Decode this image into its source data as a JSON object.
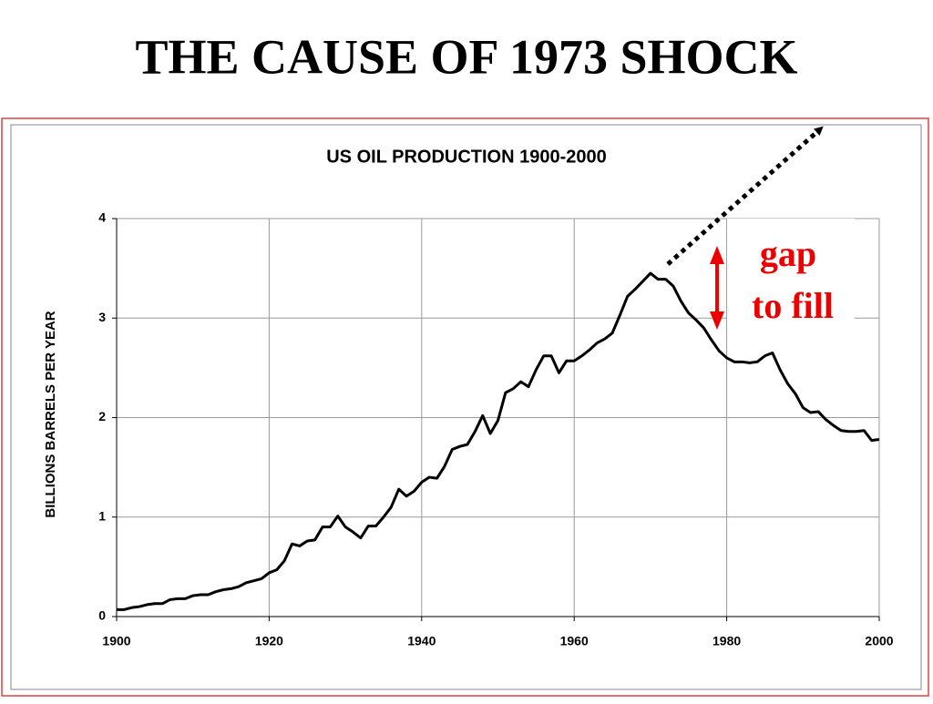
{
  "slide_title": "THE CAUSE OF 1973 SHOCK",
  "chart_data": {
    "type": "line",
    "title": "US OIL PRODUCTION 1900-2000",
    "y_label": "BILLIONS BARRELS PER YEAR",
    "x": [
      1900,
      1901,
      1902,
      1903,
      1904,
      1905,
      1906,
      1907,
      1908,
      1909,
      1910,
      1911,
      1912,
      1913,
      1914,
      1915,
      1916,
      1917,
      1918,
      1919,
      1920,
      1921,
      1922,
      1923,
      1924,
      1925,
      1926,
      1927,
      1928,
      1929,
      1930,
      1931,
      1932,
      1933,
      1934,
      1935,
      1936,
      1937,
      1938,
      1939,
      1940,
      1941,
      1942,
      1943,
      1944,
      1945,
      1946,
      1947,
      1948,
      1949,
      1950,
      1951,
      1952,
      1953,
      1954,
      1955,
      1956,
      1957,
      1958,
      1959,
      1960,
      1961,
      1962,
      1963,
      1964,
      1965,
      1966,
      1967,
      1968,
      1969,
      1970,
      1971,
      1972,
      1973,
      1974,
      1975,
      1976,
      1977,
      1978,
      1979,
      1980,
      1981,
      1982,
      1983,
      1984,
      1985,
      1986,
      1987,
      1988,
      1989,
      1990,
      1991,
      1992,
      1993,
      1994,
      1995,
      1996,
      1997,
      1998,
      1999,
      2000
    ],
    "values": [
      0.07,
      0.07,
      0.09,
      0.1,
      0.12,
      0.13,
      0.13,
      0.17,
      0.18,
      0.18,
      0.21,
      0.22,
      0.22,
      0.25,
      0.27,
      0.28,
      0.3,
      0.34,
      0.36,
      0.38,
      0.44,
      0.47,
      0.56,
      0.73,
      0.71,
      0.76,
      0.77,
      0.9,
      0.9,
      1.01,
      0.9,
      0.85,
      0.79,
      0.91,
      0.91,
      1.0,
      1.1,
      1.28,
      1.21,
      1.26,
      1.35,
      1.4,
      1.39,
      1.51,
      1.68,
      1.71,
      1.73,
      1.86,
      2.02,
      1.84,
      1.97,
      2.25,
      2.29,
      2.36,
      2.31,
      2.48,
      2.62,
      2.62,
      2.45,
      2.57,
      2.57,
      2.62,
      2.68,
      2.75,
      2.79,
      2.85,
      3.03,
      3.22,
      3.29,
      3.37,
      3.45,
      3.39,
      3.39,
      3.32,
      3.17,
      3.05,
      2.98,
      2.9,
      2.78,
      2.67,
      2.6,
      2.56,
      2.56,
      2.55,
      2.56,
      2.62,
      2.65,
      2.48,
      2.34,
      2.24,
      2.1,
      2.05,
      2.06,
      1.98,
      1.92,
      1.87,
      1.86,
      1.86,
      1.87,
      1.77,
      1.78
    ],
    "color": "#000000",
    "xlim": [
      1900,
      2000
    ],
    "xticks": [
      1900,
      1920,
      1940,
      1960,
      1980,
      2000
    ],
    "ylim": [
      0,
      4
    ],
    "yticks": [
      0,
      1,
      2,
      3,
      4
    ],
    "grid": true,
    "annotations": [
      "gap",
      "to fill"
    ]
  }
}
